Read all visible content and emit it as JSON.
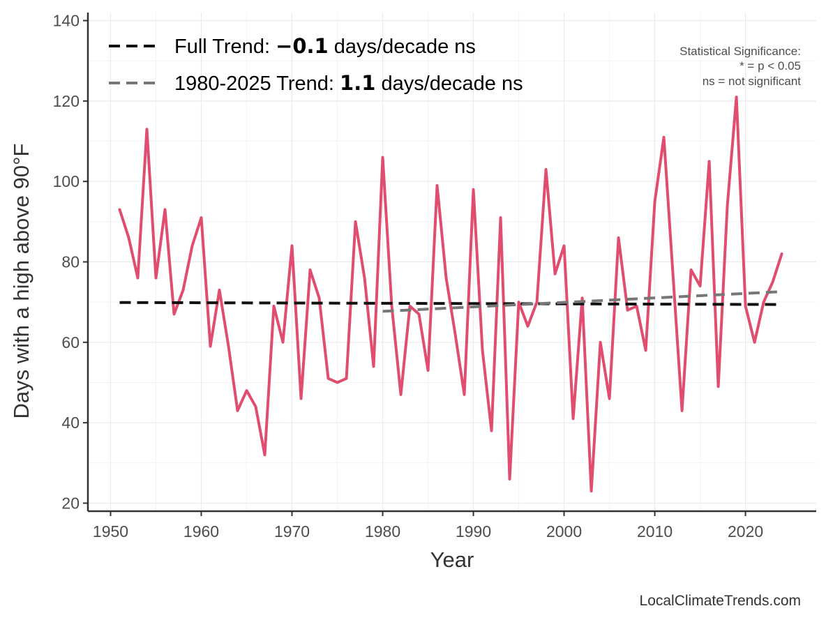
{
  "chart_data": {
    "type": "line",
    "xlabel": "Year",
    "ylabel": "Days with a high above 90°F",
    "xlim": [
      1947.5,
      2027.8
    ],
    "ylim": [
      18,
      142
    ],
    "xticks": [
      1950,
      1960,
      1970,
      1980,
      1990,
      2000,
      2010,
      2020
    ],
    "yticks": [
      20,
      40,
      60,
      80,
      100,
      120,
      140
    ],
    "grid": true,
    "series": [
      {
        "name": "Days with a high above 90°F",
        "color": "#e04d6e",
        "x": [
          1951,
          1952,
          1953,
          1954,
          1955,
          1956,
          1957,
          1958,
          1959,
          1960,
          1961,
          1962,
          1963,
          1964,
          1965,
          1966,
          1967,
          1968,
          1969,
          1970,
          1971,
          1972,
          1973,
          1974,
          1975,
          1976,
          1977,
          1978,
          1979,
          1980,
          1981,
          1982,
          1983,
          1984,
          1985,
          1986,
          1987,
          1988,
          1989,
          1990,
          1991,
          1992,
          1993,
          1994,
          1995,
          1996,
          1997,
          1998,
          1999,
          2000,
          2001,
          2002,
          2003,
          2004,
          2005,
          2006,
          2007,
          2008,
          2009,
          2010,
          2011,
          2012,
          2013,
          2014,
          2015,
          2016,
          2017,
          2018,
          2019,
          2020,
          2021,
          2022,
          2023,
          2024
        ],
        "values": [
          93,
          86,
          76,
          113,
          76,
          93,
          67,
          73,
          84,
          91,
          59,
          73,
          59,
          43,
          48,
          44,
          32,
          69,
          60,
          84,
          46,
          78,
          71,
          51,
          50,
          51,
          90,
          76,
          54,
          106,
          69,
          47,
          69,
          67,
          53,
          99,
          76,
          62,
          47,
          98,
          58,
          38,
          91,
          26,
          70,
          64,
          70,
          103,
          77,
          84,
          41,
          71,
          23,
          60,
          46,
          86,
          68,
          69,
          58,
          95,
          111,
          77,
          43,
          78,
          74,
          105,
          49,
          94,
          121,
          69,
          60,
          70,
          75,
          82
        ]
      }
    ],
    "trends": [
      {
        "name": "Full Trend",
        "color": "#111111",
        "start": [
          1951,
          69.9
        ],
        "end": [
          2024,
          69.4
        ],
        "legend_prefix": "Full Trend: ",
        "legend_value": "−0.1",
        "legend_suffix": " days/decade ns"
      },
      {
        "name": "1980-2025 Trend",
        "color": "#777777",
        "start": [
          1980,
          67.7
        ],
        "end": [
          2024,
          72.6
        ],
        "legend_prefix": "1980-2025 Trend: ",
        "legend_value": "1.1",
        "legend_suffix": " days/decade ns"
      }
    ],
    "annotations": {
      "significance_title": "Statistical Significance:",
      "significance_line1": "* = p < 0.05",
      "significance_line2": "ns = not significant"
    },
    "caption": "LocalClimateTrends.com"
  }
}
